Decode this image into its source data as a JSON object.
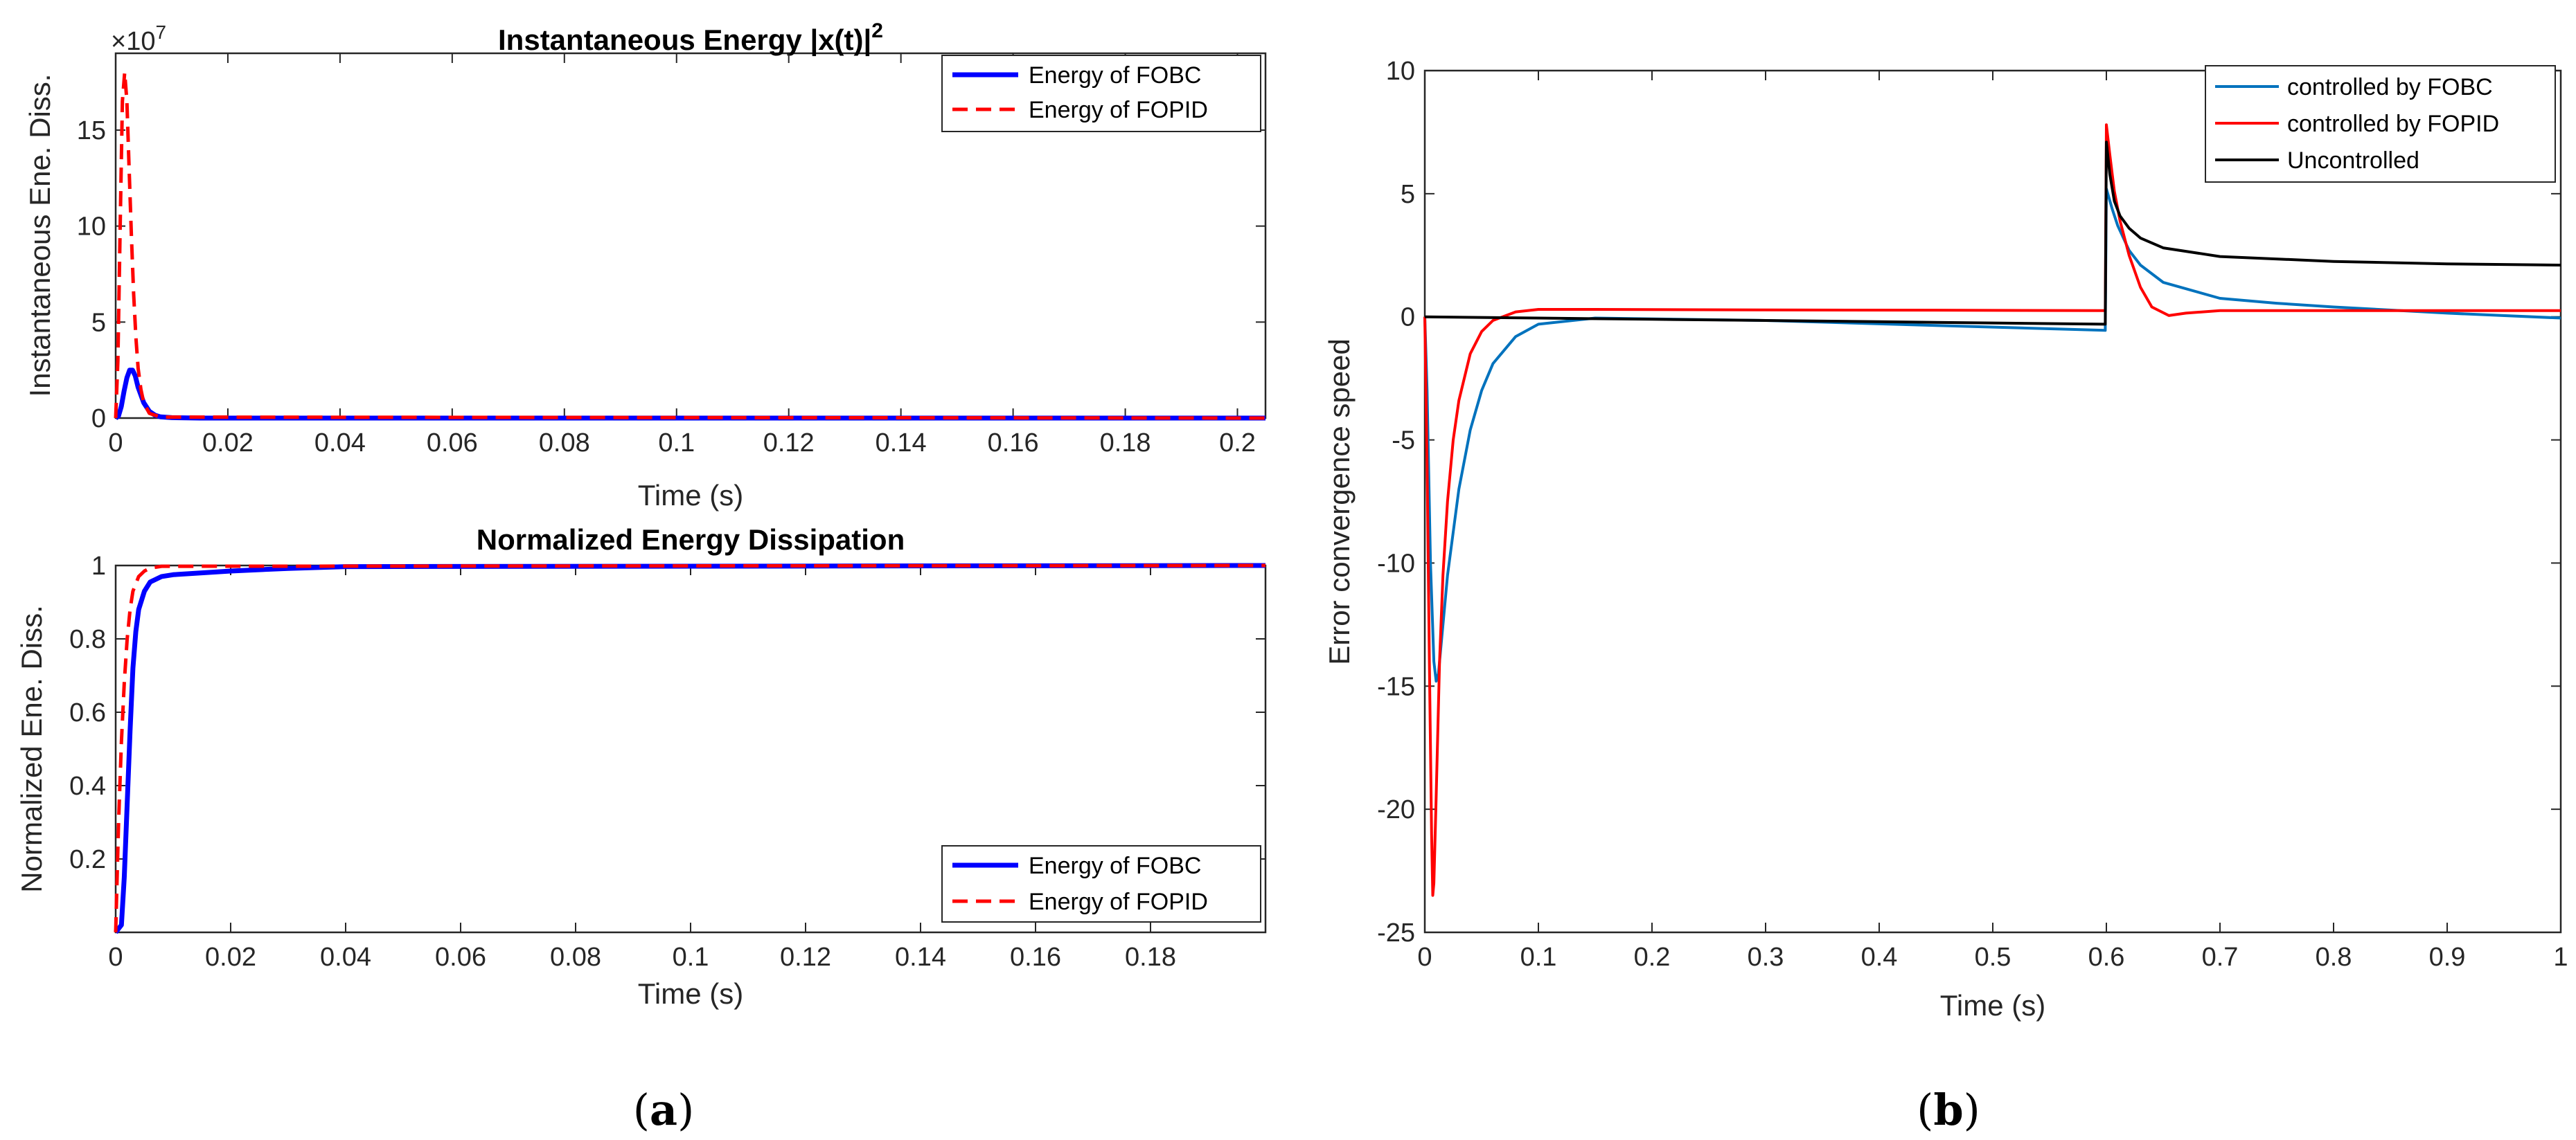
{
  "chart_data": [
    {
      "id": "a-top",
      "type": "line",
      "title": "Instantaneous Energy |x(t)|",
      "title_superscript": "2",
      "xlabel": "Time (s)",
      "ylabel": "Instantaneous Ene. Diss.",
      "y_exponent_base": "×10",
      "y_exponent_power": "7",
      "xlim": [
        0,
        0.205
      ],
      "ylim": [
        0,
        19
      ],
      "xticks": [
        0,
        0.02,
        0.04,
        0.06,
        0.08,
        0.1,
        0.12,
        0.14,
        0.16,
        0.18,
        0.2
      ],
      "xticklabels": [
        "0",
        "0.02",
        "0.04",
        "0.06",
        "0.08",
        "0.1",
        "0.12",
        "0.14",
        "0.16",
        "0.18",
        "0.2"
      ],
      "yticks": [
        0,
        5,
        10,
        15
      ],
      "yticklabels": [
        "0",
        "5",
        "10",
        "15"
      ],
      "legend_position": "top-right",
      "series": [
        {
          "name": "Energy of FOBC",
          "color": "#0000ff",
          "dash": "solid",
          "width": 7,
          "x": [
            0,
            0.0005,
            0.001,
            0.0015,
            0.002,
            0.0025,
            0.003,
            0.0035,
            0.004,
            0.005,
            0.006,
            0.007,
            0.008,
            0.01,
            0.015,
            0.205
          ],
          "y": [
            0,
            0.1,
            0.6,
            1.4,
            2.1,
            2.5,
            2.5,
            2.2,
            1.6,
            0.8,
            0.35,
            0.15,
            0.06,
            0.02,
            0,
            0
          ]
        },
        {
          "name": "Energy of FOPID",
          "color": "#ff0000",
          "dash": "dashed",
          "width": 5,
          "x": [
            0,
            0.0004,
            0.0008,
            0.0012,
            0.0016,
            0.002,
            0.0024,
            0.0028,
            0.0032,
            0.0036,
            0.004,
            0.0045,
            0.005,
            0.006,
            0.008,
            0.205
          ],
          "y": [
            0,
            3,
            10,
            16.5,
            18,
            16.5,
            13,
            9.5,
            6.5,
            4.2,
            2.6,
            1.5,
            0.8,
            0.25,
            0.05,
            0
          ]
        }
      ]
    },
    {
      "id": "a-bottom",
      "type": "line",
      "title": "Normalized Energy Dissipation",
      "xlabel": "Time (s)",
      "ylabel": "Normalized Ene. Diss.",
      "xlim": [
        0,
        0.2
      ],
      "ylim": [
        0,
        1
      ],
      "xticks": [
        0,
        0.02,
        0.04,
        0.06,
        0.08,
        0.1,
        0.12,
        0.14,
        0.16,
        0.18
      ],
      "xticklabels": [
        "0",
        "0.02",
        "0.04",
        "0.06",
        "0.08",
        "0.1",
        "0.12",
        "0.14",
        "0.16",
        "0.18"
      ],
      "yticks": [
        0.2,
        0.4,
        0.6,
        0.8,
        1
      ],
      "yticklabels": [
        "0.2",
        "0.4",
        "0.6",
        "0.8",
        "1"
      ],
      "legend_position": "bottom-right",
      "series": [
        {
          "name": "Energy of FOBC",
          "color": "#0000ff",
          "dash": "solid",
          "width": 7,
          "x": [
            0,
            0.001,
            0.0015,
            0.002,
            0.0025,
            0.003,
            0.0035,
            0.004,
            0.005,
            0.006,
            0.008,
            0.01,
            0.02,
            0.03,
            0.04,
            0.2
          ],
          "y": [
            0,
            0.02,
            0.15,
            0.35,
            0.55,
            0.72,
            0.82,
            0.88,
            0.93,
            0.955,
            0.97,
            0.975,
            0.985,
            0.992,
            0.997,
            1.0
          ]
        },
        {
          "name": "Energy of FOPID",
          "color": "#ff0000",
          "dash": "dashed",
          "width": 5,
          "x": [
            0,
            0.0005,
            0.001,
            0.0015,
            0.002,
            0.0025,
            0.003,
            0.004,
            0.005,
            0.006,
            0.008,
            0.2
          ],
          "y": [
            0,
            0.3,
            0.52,
            0.68,
            0.8,
            0.88,
            0.93,
            0.97,
            0.985,
            0.993,
            0.998,
            1.0
          ]
        }
      ]
    },
    {
      "id": "b",
      "type": "line",
      "title": "",
      "xlabel": "Time (s)",
      "ylabel": "Error convergence speed",
      "xlim": [
        0,
        1
      ],
      "ylim": [
        -25,
        10
      ],
      "xticks": [
        0,
        0.1,
        0.2,
        0.3,
        0.4,
        0.5,
        0.6,
        0.7,
        0.8,
        0.9,
        1
      ],
      "xticklabels": [
        "0",
        "0.1",
        "0.2",
        "0.3",
        "0.4",
        "0.5",
        "0.6",
        "0.7",
        "0.8",
        "0.9",
        "1"
      ],
      "yticks": [
        -25,
        -20,
        -15,
        -10,
        -5,
        0,
        5,
        10
      ],
      "yticklabels": [
        "-25",
        "-20",
        "-15",
        "-10",
        "-5",
        "0",
        "5",
        "10"
      ],
      "legend_position": "top-right",
      "series": [
        {
          "name": "controlled by FOBC",
          "color": "#0072bd",
          "dash": "solid",
          "width": 4,
          "x": [
            0,
            0.002,
            0.005,
            0.008,
            0.01,
            0.012,
            0.015,
            0.02,
            0.03,
            0.04,
            0.05,
            0.06,
            0.08,
            0.1,
            0.15,
            0.3,
            0.45,
            0.599,
            0.6,
            0.605,
            0.61,
            0.62,
            0.63,
            0.65,
            0.7,
            0.75,
            0.8,
            0.9,
            1.0
          ],
          "y": [
            0,
            -3,
            -10,
            -14,
            -14.8,
            -14.5,
            -13,
            -10.5,
            -7,
            -4.6,
            -3.0,
            -1.9,
            -0.8,
            -0.3,
            -0.05,
            -0.15,
            -0.35,
            -0.55,
            5.2,
            4.4,
            3.7,
            2.7,
            2.1,
            1.4,
            0.75,
            0.55,
            0.4,
            0.15,
            -0.05
          ]
        },
        {
          "name": "controlled by FOPID",
          "color": "#ff0000",
          "dash": "solid",
          "width": 4,
          "x": [
            0,
            0.002,
            0.004,
            0.006,
            0.007,
            0.008,
            0.01,
            0.013,
            0.016,
            0.02,
            0.025,
            0.03,
            0.04,
            0.05,
            0.06,
            0.08,
            0.1,
            0.15,
            0.3,
            0.45,
            0.599,
            0.6,
            0.603,
            0.607,
            0.612,
            0.62,
            0.63,
            0.64,
            0.655,
            0.67,
            0.7,
            0.8,
            0.9,
            1.0
          ],
          "y": [
            0,
            -6,
            -14,
            -21,
            -23.5,
            -23,
            -19.5,
            -14,
            -10.5,
            -7.5,
            -5.0,
            -3.4,
            -1.5,
            -0.6,
            -0.15,
            0.2,
            0.3,
            0.3,
            0.28,
            0.27,
            0.25,
            7.8,
            6.6,
            5.1,
            3.9,
            2.5,
            1.2,
            0.4,
            0.05,
            0.15,
            0.25,
            0.25,
            0.25,
            0.25
          ]
        },
        {
          "name": "Uncontrolled",
          "color": "#000000",
          "dash": "solid",
          "width": 4,
          "x": [
            0,
            0.1,
            0.2,
            0.3,
            0.4,
            0.5,
            0.599,
            0.6,
            0.603,
            0.607,
            0.612,
            0.62,
            0.63,
            0.65,
            0.7,
            0.8,
            0.9,
            1.0
          ],
          "y": [
            0,
            -0.05,
            -0.1,
            -0.15,
            -0.2,
            -0.25,
            -0.3,
            7.1,
            5.8,
            4.7,
            4.1,
            3.6,
            3.2,
            2.8,
            2.45,
            2.25,
            2.15,
            2.1
          ]
        }
      ]
    }
  ],
  "panel_labels": {
    "a_open": "(",
    "a_letter": "a",
    "a_close": ")",
    "b_open": "(",
    "b_letter": "b",
    "b_close": ")"
  }
}
